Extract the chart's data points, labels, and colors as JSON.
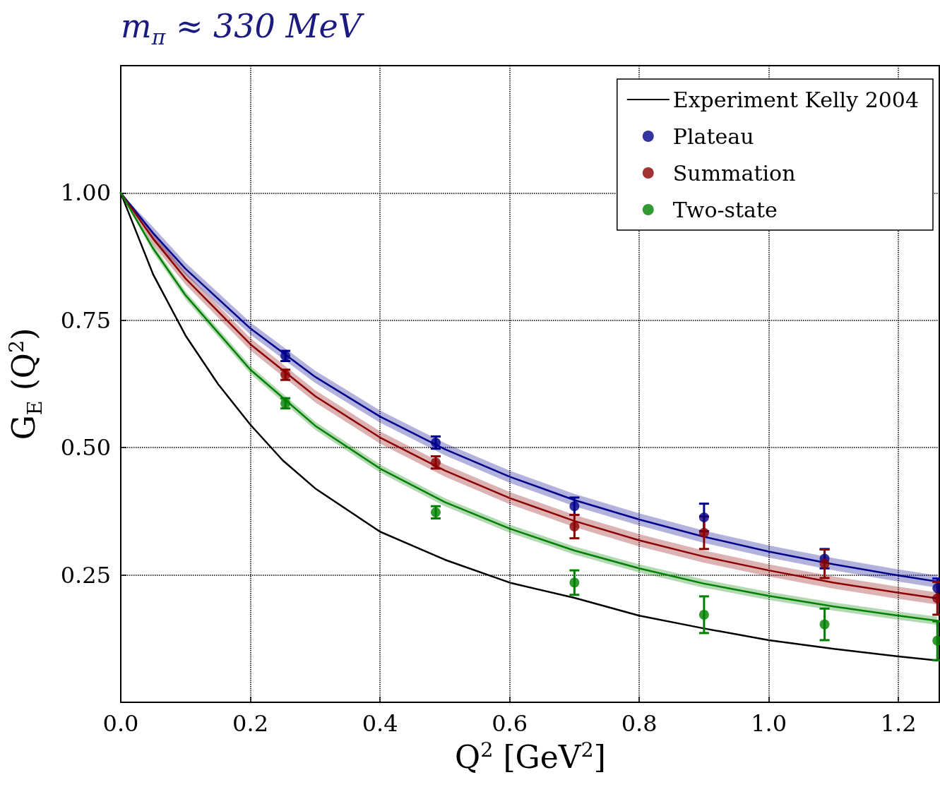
{
  "chart_data": {
    "type": "scatter",
    "title": "m$_{π}$ ≈ 330 MeV",
    "xlabel": "Q$^{2}$  [GeV$^{2}$]",
    "ylabel": "G$_{E}$ (Q$^{2}$)",
    "xlim": [
      0,
      1.263
    ],
    "ylim": [
      0,
      1.25
    ],
    "xticks": [
      {
        "value": 0,
        "label": "0.0"
      },
      {
        "value": 0.2,
        "label": "0.2"
      },
      {
        "value": 0.4,
        "label": "0.4"
      },
      {
        "value": 0.6,
        "label": "0.6"
      },
      {
        "value": 0.8,
        "label": "0.8"
      },
      {
        "value": 1.0,
        "label": "1.0"
      },
      {
        "value": 1.2,
        "label": "1.2"
      }
    ],
    "yticks": [
      {
        "value": 0.25,
        "label": "0.25"
      },
      {
        "value": 0.5,
        "label": "0.50"
      },
      {
        "value": 0.75,
        "label": "0.75"
      },
      {
        "value": 1.0,
        "label": "1.00"
      }
    ],
    "grid": true,
    "legend": "top right",
    "line_style": "solid",
    "series": [
      {
        "name": "Experiment Kelly 2004",
        "type": "line",
        "marker": "none",
        "color": "#000000",
        "x": [
          0,
          0.05,
          0.1,
          0.15,
          0.2,
          0.25,
          0.3,
          0.4,
          0.5,
          0.6,
          0.7,
          0.8,
          0.9,
          1.0,
          1.1,
          1.2,
          1.26
        ],
        "values": [
          1,
          0.84,
          0.72,
          0.625,
          0.545,
          0.475,
          0.42,
          0.335,
          0.28,
          0.235,
          0.205,
          0.17,
          0.145,
          0.122,
          0.105,
          0.09,
          0.082
        ]
      },
      {
        "type": "line",
        "marker": "none",
        "color": "#00008b",
        "x": [
          0,
          0.05,
          0.1,
          0.2,
          0.3,
          0.4,
          0.5,
          0.6,
          0.7,
          0.8,
          0.9,
          1.0,
          1.1,
          1.2,
          1.26
        ],
        "values": [
          1,
          0.921,
          0.851,
          0.734,
          0.639,
          0.561,
          0.497,
          0.443,
          0.397,
          0.359,
          0.325,
          0.296,
          0.271,
          0.249,
          0.237
        ],
        "lower": [
          1,
          0.909,
          0.839,
          0.722,
          0.627,
          0.549,
          0.485,
          0.431,
          0.385,
          0.347,
          0.313,
          0.284,
          0.259,
          0.237,
          0.225
        ],
        "upper": [
          1,
          0.933,
          0.863,
          0.746,
          0.651,
          0.573,
          0.509,
          0.455,
          0.409,
          0.371,
          0.337,
          0.308,
          0.283,
          0.261,
          0.249
        ]
      },
      {
        "type": "line",
        "marker": "none",
        "color": "#8b0000",
        "x": [
          0,
          0.05,
          0.1,
          0.2,
          0.3,
          0.4,
          0.5,
          0.6,
          0.7,
          0.8,
          0.9,
          1.0,
          1.1,
          1.2,
          1.26
        ],
        "values": [
          1,
          0.91,
          0.832,
          0.703,
          0.601,
          0.52,
          0.455,
          0.401,
          0.356,
          0.318,
          0.286,
          0.259,
          0.235,
          0.215,
          0.204
        ],
        "lower": [
          1,
          0.898,
          0.82,
          0.691,
          0.589,
          0.508,
          0.443,
          0.389,
          0.344,
          0.306,
          0.274,
          0.247,
          0.223,
          0.203,
          0.192
        ],
        "upper": [
          1,
          0.922,
          0.844,
          0.715,
          0.613,
          0.532,
          0.467,
          0.413,
          0.368,
          0.33,
          0.298,
          0.271,
          0.247,
          0.227,
          0.216
        ]
      },
      {
        "type": "line",
        "marker": "none",
        "color": "#008000",
        "x": [
          0,
          0.05,
          0.1,
          0.2,
          0.3,
          0.4,
          0.5,
          0.6,
          0.7,
          0.8,
          0.9,
          1.0,
          1.1,
          1.2,
          1.26
        ],
        "values": [
          1,
          0.891,
          0.799,
          0.653,
          0.543,
          0.459,
          0.393,
          0.341,
          0.298,
          0.263,
          0.233,
          0.209,
          0.188,
          0.17,
          0.16
        ],
        "lower": [
          1,
          0.883,
          0.791,
          0.645,
          0.535,
          0.451,
          0.385,
          0.333,
          0.29,
          0.255,
          0.225,
          0.201,
          0.18,
          0.162,
          0.152
        ],
        "upper": [
          1,
          0.899,
          0.807,
          0.661,
          0.551,
          0.467,
          0.401,
          0.349,
          0.306,
          0.271,
          0.241,
          0.217,
          0.196,
          0.178,
          0.168
        ]
      },
      {
        "name": "Plateau",
        "marker": "circle",
        "color": "#00008b",
        "x": [
          0.254,
          0.486,
          0.7,
          0.9,
          1.086,
          1.26
        ],
        "values": [
          0.68,
          0.51,
          0.385,
          0.363,
          0.282,
          0.224
        ],
        "errors": [
          0.01,
          0.012,
          0.017,
          0.027,
          0.019,
          0.019
        ]
      },
      {
        "name": "Summation",
        "marker": "circle",
        "color": "#8b0000",
        "x": [
          0.254,
          0.486,
          0.7,
          0.9,
          1.086,
          1.26
        ],
        "values": [
          0.643,
          0.471,
          0.345,
          0.333,
          0.272,
          0.204
        ],
        "errors": [
          0.01,
          0.012,
          0.023,
          0.032,
          0.028,
          0.032
        ]
      },
      {
        "name": "Two-state",
        "marker": "circle",
        "color": "#008000",
        "x": [
          0.254,
          0.486,
          0.7,
          0.9,
          1.086,
          1.26
        ],
        "values": [
          0.587,
          0.373,
          0.235,
          0.172,
          0.153,
          0.121
        ],
        "errors": [
          0.01,
          0.012,
          0.024,
          0.036,
          0.031,
          0.038
        ]
      }
    ]
  }
}
